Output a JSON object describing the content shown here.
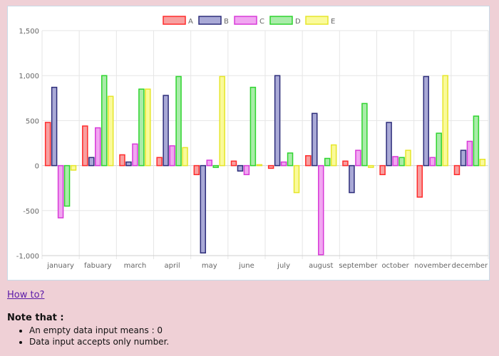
{
  "chart_data": {
    "type": "bar",
    "categories": [
      "january",
      "fabuary",
      "march",
      "april",
      "may",
      "june",
      "july",
      "august",
      "september",
      "october",
      "november",
      "december"
    ],
    "series": [
      {
        "name": "A",
        "border": "#ff2b2b",
        "fill": "#f7a0a0",
        "values": [
          480,
          440,
          120,
          90,
          -100,
          50,
          -30,
          110,
          50,
          -100,
          -350,
          -100
        ]
      },
      {
        "name": "B",
        "border": "#2d2d7a",
        "fill": "#a9a9d6",
        "values": [
          870,
          90,
          40,
          780,
          -970,
          -60,
          1000,
          580,
          -300,
          480,
          990,
          170
        ]
      },
      {
        "name": "C",
        "border": "#d83ad8",
        "fill": "#f1a6f1",
        "values": [
          -580,
          420,
          240,
          220,
          60,
          -100,
          40,
          -990,
          170,
          100,
          90,
          270
        ]
      },
      {
        "name": "D",
        "border": "#2ed42e",
        "fill": "#a9eca9",
        "values": [
          -450,
          1000,
          850,
          990,
          -20,
          870,
          140,
          80,
          690,
          90,
          360,
          550
        ]
      },
      {
        "name": "E",
        "border": "#e6e62a",
        "fill": "#fafa9a",
        "values": [
          -50,
          770,
          850,
          200,
          990,
          10,
          -300,
          230,
          -20,
          170,
          1000,
          70
        ]
      }
    ],
    "yticks": [
      1500,
      1000,
      500,
      0,
      -500,
      -1000
    ],
    "ytick_labels": [
      "1,500",
      "1,000",
      "500",
      "0",
      "-500",
      "-1,000"
    ],
    "ylim": [
      -1000,
      1500
    ],
    "legend": "top",
    "grid": true
  },
  "links": {
    "how_to": "How to?"
  },
  "notes": {
    "title": "Note that :",
    "items": [
      "An empty data input means : 0",
      "Data input accepts only number."
    ]
  }
}
